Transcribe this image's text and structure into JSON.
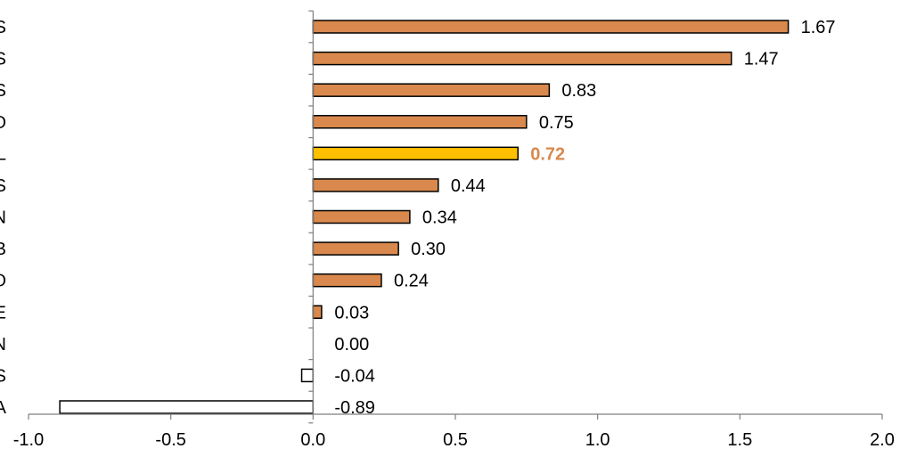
{
  "chart_data": {
    "type": "bar",
    "orientation": "horizontal",
    "categories": [
      "S",
      "S",
      "S",
      "O",
      "L",
      "S",
      "N",
      "B",
      "O",
      "E",
      "N",
      "S",
      "A"
    ],
    "values": [
      1.67,
      1.47,
      0.83,
      0.75,
      0.72,
      0.44,
      0.34,
      0.3,
      0.24,
      0.03,
      0.0,
      -0.04,
      -0.89
    ],
    "data_labels": [
      "1.67",
      "1.47",
      "0.83",
      "0.75",
      "0.72",
      "0.44",
      "0.34",
      "0.30",
      "0.24",
      "0.03",
      "0.00",
      "-0.04",
      "-0.89"
    ],
    "highlight_index": 4,
    "xlim": [
      -1.0,
      2.0
    ],
    "x_ticks": [
      "-1.0",
      "-0.5",
      "0.0",
      "0.5",
      "1.0",
      "1.5",
      "2.0"
    ],
    "grid": false,
    "colors": {
      "positive": "#D9894D",
      "highlight": "#FFC000",
      "negative": "#FFFFFF",
      "outline": "#000000",
      "highlight_label": "#D9894D"
    }
  }
}
